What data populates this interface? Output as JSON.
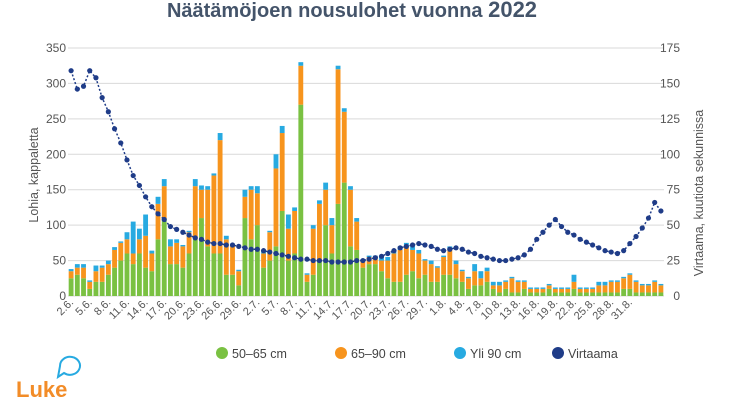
{
  "chart_data": {
    "type": "bar",
    "title_main": "Näätämöjoen nousulohet vuonna",
    "title_year": "2022",
    "ylabel": "Lohia, kappaletta",
    "y2label": "Virtaama, kuutiota sekunnissa",
    "ylim": [
      0,
      350
    ],
    "y2lim": [
      0,
      175
    ],
    "yticks": [
      0,
      50,
      100,
      150,
      200,
      250,
      300,
      350
    ],
    "y2ticks": [
      0,
      25,
      50,
      75,
      100,
      125,
      150,
      175
    ],
    "x_tick_labels": [
      "2.6.",
      "5.6.",
      "8.6.",
      "11.6.",
      "14.6.",
      "17.6.",
      "20.6.",
      "23.6.",
      "26.6.",
      "29.6.",
      "2.7.",
      "5.7.",
      "8.7.",
      "11.7.",
      "14.7.",
      "17.7.",
      "20.7.",
      "23.7.",
      "26.7.",
      "29.7.",
      "1.8.",
      "4.8.",
      "7.8.",
      "10.8.",
      "13.8.",
      "16.8.",
      "19.8.",
      "22.8.",
      "25.8.",
      "28.8.",
      "31.8."
    ],
    "grid": true,
    "legend_position": "bottom",
    "colors": {
      "s1": "#7ac142",
      "s2": "#f7941d",
      "s3": "#27aae1",
      "flow": "#1f3c88"
    },
    "series": [
      {
        "name": "50–65 cm",
        "kind": "bar",
        "values": [
          25,
          30,
          25,
          10,
          20,
          20,
          30,
          40,
          50,
          60,
          45,
          60,
          40,
          35,
          80,
          110,
          45,
          45,
          40,
          60,
          80,
          110,
          70,
          60,
          60,
          30,
          30,
          15,
          110,
          80,
          100,
          40,
          50,
          70,
          120,
          50,
          60,
          270,
          20,
          30,
          50,
          100,
          60,
          130,
          160,
          70,
          65,
          40,
          45,
          45,
          35,
          25,
          20,
          20,
          30,
          35,
          25,
          30,
          20,
          20,
          30,
          30,
          25,
          20,
          10,
          15,
          15,
          20,
          10,
          5,
          10,
          5,
          5,
          10,
          5,
          5,
          5,
          10,
          5,
          5,
          5,
          10,
          5,
          5,
          5,
          5,
          5,
          5,
          5,
          10,
          10,
          5,
          5,
          5,
          5,
          5
        ]
      },
      {
        "name": "65–90 cm",
        "kind": "bar",
        "values": [
          10,
          10,
          15,
          10,
          15,
          20,
          15,
          25,
          25,
          20,
          15,
          20,
          45,
          25,
          50,
          45,
          25,
          30,
          30,
          30,
          75,
          40,
          80,
          110,
          160,
          50,
          40,
          20,
          30,
          70,
          45,
          20,
          40,
          110,
          110,
          45,
          60,
          55,
          10,
          65,
          80,
          50,
          40,
          190,
          100,
          80,
          40,
          10,
          10,
          10,
          15,
          25,
          40,
          45,
          40,
          30,
          35,
          20,
          25,
          20,
          25,
          35,
          20,
          15,
          15,
          20,
          10,
          15,
          5,
          10,
          10,
          20,
          15,
          10,
          5,
          5,
          5,
          5,
          5,
          5,
          5,
          10,
          5,
          5,
          5,
          10,
          10,
          15,
          15,
          15,
          20,
          15,
          10,
          10,
          15,
          10
        ]
      },
      {
        "name": "Yli 90 cm",
        "kind": "bar",
        "values": [
          3,
          5,
          5,
          2,
          8,
          3,
          5,
          4,
          2,
          10,
          45,
          15,
          30,
          4,
          10,
          10,
          10,
          5,
          2,
          2,
          10,
          6,
          5,
          3,
          10,
          5,
          2,
          2,
          10,
          5,
          10,
          4,
          2,
          20,
          10,
          20,
          5,
          5,
          2,
          5,
          5,
          10,
          10,
          5,
          5,
          5,
          5,
          2,
          2,
          2,
          5,
          5,
          5,
          5,
          5,
          5,
          5,
          2,
          5,
          2,
          2,
          5,
          5,
          2,
          2,
          10,
          10,
          5,
          5,
          5,
          2,
          2,
          2,
          2,
          2,
          2,
          2,
          2,
          2,
          2,
          2,
          10,
          2,
          2,
          2,
          5,
          5,
          2,
          2,
          2,
          2,
          2,
          2,
          2,
          2,
          2
        ]
      },
      {
        "name": "Virtaama",
        "kind": "line",
        "axis": "right",
        "values": [
          159,
          146,
          148,
          159,
          154,
          140,
          130,
          118,
          108,
          96,
          85,
          78,
          70,
          63,
          58,
          54,
          49,
          47,
          45,
          43,
          41,
          40,
          38,
          37,
          37,
          36,
          36,
          35,
          34,
          33,
          33,
          32,
          31,
          30,
          29,
          28,
          27,
          26,
          26,
          25,
          25,
          25,
          24,
          24,
          24,
          24,
          25,
          25,
          26,
          27,
          28,
          30,
          32,
          34,
          35,
          36,
          37,
          36,
          35,
          33,
          32,
          33,
          34,
          33,
          31,
          30,
          28,
          27,
          26,
          25,
          25,
          26,
          27,
          29,
          33,
          40,
          45,
          50,
          54,
          49,
          45,
          43,
          40,
          38,
          36,
          34,
          32,
          31,
          30,
          32,
          37,
          42,
          48,
          55,
          66,
          60
        ]
      }
    ]
  },
  "legend": {
    "items": [
      "50–65 cm",
      "65–90 cm",
      "Yli 90 cm",
      "Virtaama"
    ]
  },
  "logo": {
    "text": "Luke"
  }
}
